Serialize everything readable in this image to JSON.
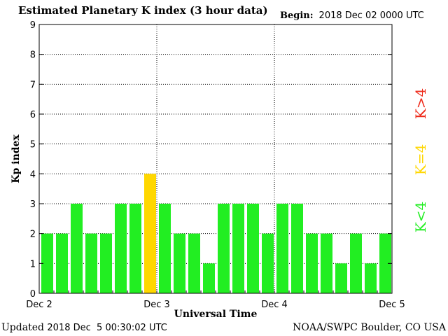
{
  "header": {
    "title": "Estimated Planetary K index (3 hour data)",
    "begin_label": "Begin:",
    "begin_value": "2018 Dec 02 0000 UTC"
  },
  "footer": {
    "updated_label": "Updated",
    "updated_value": "2018 Dec  5 00:30:02 UTC",
    "credit": "NOAA/SWPC Boulder, CO USA"
  },
  "legend": {
    "items": [
      {
        "label": "K<4",
        "color": "#22ee22"
      },
      {
        "label": "K=4",
        "color": "#ffd700"
      },
      {
        "label": "K>4",
        "color": "#ee2a1a"
      }
    ]
  },
  "chart_data": {
    "type": "bar",
    "title": "Estimated Planetary K index (3 hour data)",
    "xlabel": "Universal Time",
    "ylabel": "Kp index",
    "ylim": [
      0,
      9
    ],
    "yticks": [
      0,
      1,
      2,
      3,
      4,
      5,
      6,
      7,
      8,
      9
    ],
    "xtick_labels": [
      "Dec 2",
      "Dec 3",
      "Dec 4",
      "Dec 5"
    ],
    "grid": true,
    "values": [
      2,
      2,
      3,
      2,
      2,
      3,
      3,
      4,
      3,
      2,
      2,
      1,
      3,
      3,
      3,
      2,
      3,
      3,
      2,
      2,
      1,
      2,
      1,
      2
    ],
    "colors": {
      "below4": "#22ee22",
      "equal4": "#ffd700",
      "above4": "#ee2a1a"
    }
  }
}
